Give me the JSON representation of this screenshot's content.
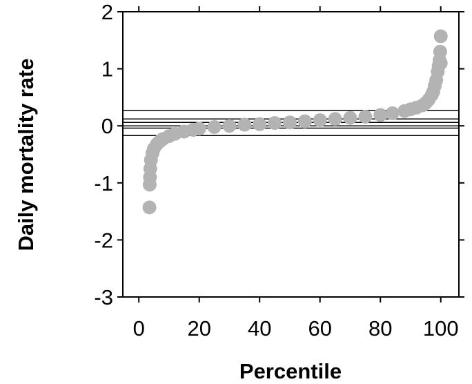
{
  "chart_data": {
    "type": "scatter",
    "x_label": "Percentile",
    "y_label": "Daily mortality rate",
    "xlim": [
      -5.3,
      106
    ],
    "ylim": [
      -3,
      2
    ],
    "xticks": [
      0,
      20,
      40,
      60,
      80,
      100
    ],
    "yticks": [
      -3,
      -2,
      -1,
      0,
      1,
      2
    ],
    "hlines": [
      0.27,
      0.12,
      0.06,
      0,
      -0.04,
      -0.17
    ],
    "series": [
      {
        "color": "#b3b3b3",
        "x": [
          3.5,
          3.6,
          3.7,
          3.8,
          4,
          4.5,
          5,
          6,
          7,
          8,
          10,
          12,
          15,
          18,
          20,
          25,
          30,
          35,
          40,
          45,
          50,
          55,
          60,
          65,
          70,
          75,
          80,
          84,
          88,
          90,
          92,
          94,
          95,
          96,
          97,
          97.5,
          98,
          98.5,
          99,
          99.3,
          99.6,
          99.8,
          100,
          100
        ],
        "values": [
          -1.43,
          -1.03,
          -0.9,
          -0.75,
          -0.6,
          -0.48,
          -0.4,
          -0.32,
          -0.27,
          -0.23,
          -0.18,
          -0.14,
          -0.1,
          -0.07,
          -0.05,
          -0.02,
          0,
          0.02,
          0.03,
          0.05,
          0.06,
          0.08,
          0.1,
          0.12,
          0.14,
          0.16,
          0.19,
          0.22,
          0.26,
          0.29,
          0.32,
          0.36,
          0.4,
          0.46,
          0.54,
          0.6,
          0.7,
          0.8,
          0.95,
          1.05,
          1.15,
          1.3,
          1.1,
          1.57
        ]
      }
    ]
  }
}
